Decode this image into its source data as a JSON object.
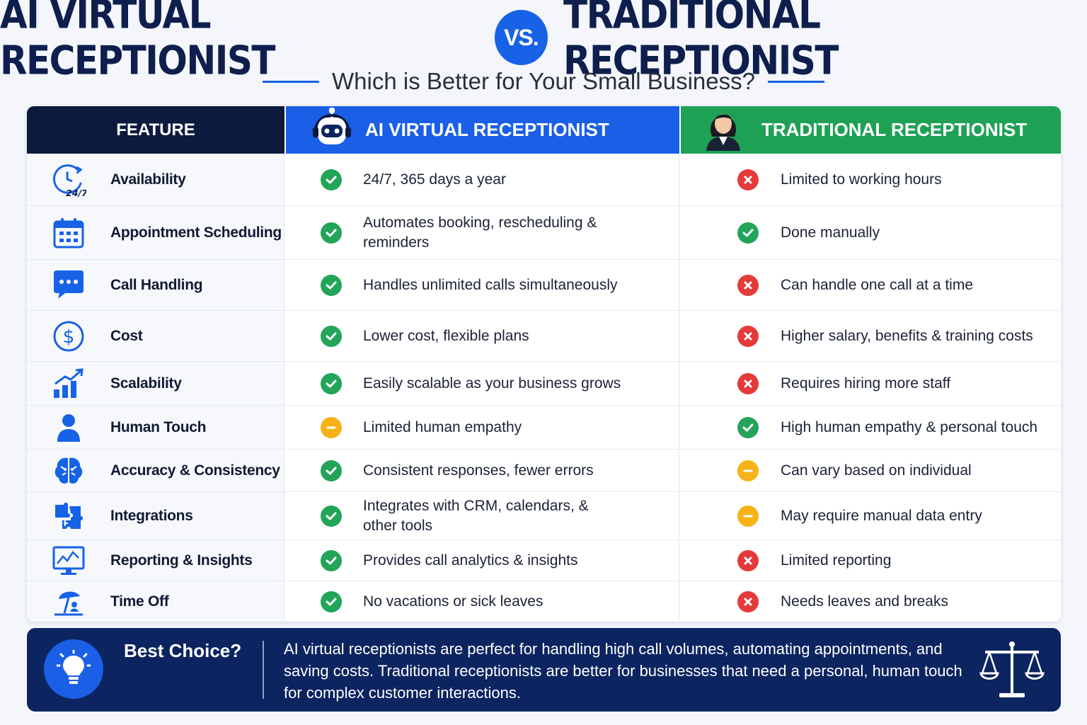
{
  "header": {
    "title_left": "AI VIRTUAL RECEPTIONIST",
    "vs": "VS.",
    "title_right": "TRADITIONAL RECEPTIONIST",
    "subtitle": "Which is Better for Your Small Business?"
  },
  "table": {
    "col_feature": "FEATURE",
    "col_ai": "AI VIRTUAL RECEPTIONIST",
    "col_traditional": "TRADITIONAL RECEPTIONIST",
    "rows": [
      {
        "feature": "Availability",
        "icon": "clock-24-7-icon",
        "ai_status": "check",
        "ai": "24/7, 365 days a year",
        "tr_status": "cross",
        "tr": "Limited to working hours"
      },
      {
        "feature": "Appointment Scheduling",
        "icon": "calendar-icon",
        "ai_status": "check",
        "ai": "Automates booking, rescheduling & reminders",
        "tr_status": "check",
        "tr": "Done manually"
      },
      {
        "feature": "Call Handling",
        "icon": "chat-bubble-icon",
        "ai_status": "check",
        "ai": "Handles unlimited calls simultaneously",
        "tr_status": "cross",
        "tr": "Can handle one call at a time"
      },
      {
        "feature": "Cost",
        "icon": "dollar-icon",
        "ai_status": "check",
        "ai": "Lower cost, flexible plans",
        "tr_status": "cross",
        "tr": "Higher salary, benefits & training costs"
      },
      {
        "feature": "Scalability",
        "icon": "growth-chart-icon",
        "ai_status": "check",
        "ai": "Easily scalable as your business grows",
        "tr_status": "cross",
        "tr": "Requires hiring more staff"
      },
      {
        "feature": "Human Touch",
        "icon": "person-icon",
        "ai_status": "dash",
        "ai": "Limited human empathy",
        "tr_status": "check",
        "tr": "High human empathy & personal touch"
      },
      {
        "feature": "Accuracy & Consistency",
        "icon": "brain-icon",
        "ai_status": "check",
        "ai": "Consistent responses, fewer errors",
        "tr_status": "dash",
        "tr": "Can vary based on individual"
      },
      {
        "feature": "Integrations",
        "icon": "puzzle-icon",
        "ai_status": "check",
        "ai": "Integrates with CRM, calendars, & other tools",
        "tr_status": "dash",
        "tr": "May require manual data entry"
      },
      {
        "feature": "Reporting & Insights",
        "icon": "analytics-monitor-icon",
        "ai_status": "check",
        "ai": "Provides call analytics & insights",
        "tr_status": "cross",
        "tr": "Limited reporting"
      },
      {
        "feature": "Time Off",
        "icon": "beach-umbrella-icon",
        "ai_status": "check",
        "ai": "No vacations or sick leaves",
        "tr_status": "cross",
        "tr": "Needs leaves and breaks"
      }
    ]
  },
  "footer": {
    "title": "Best Choice?",
    "text": "AI virtual receptionists are perfect for handling high call volumes, automating appointments, and saving costs. Traditional receptionists are better for businesses that need a personal, human touch for complex customer interactions."
  },
  "colors": {
    "navy": "#0c1a3e",
    "ai_blue": "#1a5fe6",
    "traditional_green": "#1ea155",
    "check_green": "#22a559",
    "cross_red": "#e53a3a",
    "neutral_yellow": "#f7b218"
  }
}
